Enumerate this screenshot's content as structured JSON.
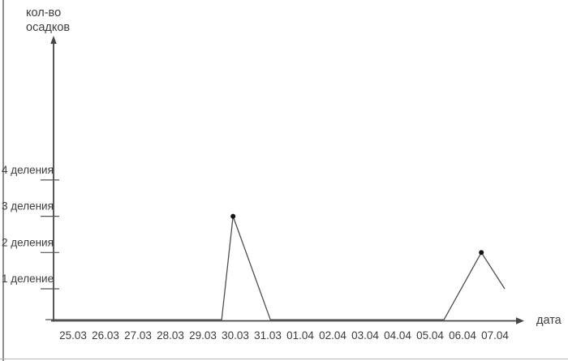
{
  "page": {
    "background": "#ffffff",
    "left_border_color": "#8f8f8f",
    "bottom_border_color": "#b5b5b5"
  },
  "chart_data": {
    "type": "line",
    "title": "",
    "ylabel_lines": [
      "кол-во",
      "осадков"
    ],
    "xlabel": "дата",
    "categories": [
      "25.03",
      "26.03",
      "27.03",
      "28.03",
      "29.03",
      "30.03",
      "31.03",
      "01.04",
      "02.04",
      "03.04",
      "04.04",
      "05.04",
      "06.04",
      "07.04"
    ],
    "y_ticks": [
      {
        "value": 1,
        "label": "1 деление"
      },
      {
        "value": 2,
        "label": "2 деления"
      },
      {
        "value": 3,
        "label": "3 деления"
      },
      {
        "value": 4,
        "label": "4 деления"
      }
    ],
    "ylim": [
      0,
      4
    ],
    "grid": false,
    "legend": "none",
    "series": [
      {
        "name": "осадки",
        "polyline": [
          {
            "x": -0.85,
            "value": 0
          },
          {
            "x": 4.58,
            "value": 0
          },
          {
            "x": 4.93,
            "value": 3,
            "marker": true
          },
          {
            "x": 6.08,
            "value": 0
          },
          {
            "x": 11.43,
            "value": 0
          },
          {
            "x": 12.58,
            "value": 2,
            "marker": true
          },
          {
            "x": 13.3,
            "value": 1
          }
        ],
        "marked_points": [
          {
            "near_date": "30.03",
            "value_divisions": 3
          },
          {
            "near_date": "06.04",
            "value_divisions": 2
          }
        ]
      }
    ],
    "colors": {
      "axis": "#474747",
      "line": "#4f4f4f",
      "marker": "#141414",
      "text": "#3d3d3d"
    }
  }
}
